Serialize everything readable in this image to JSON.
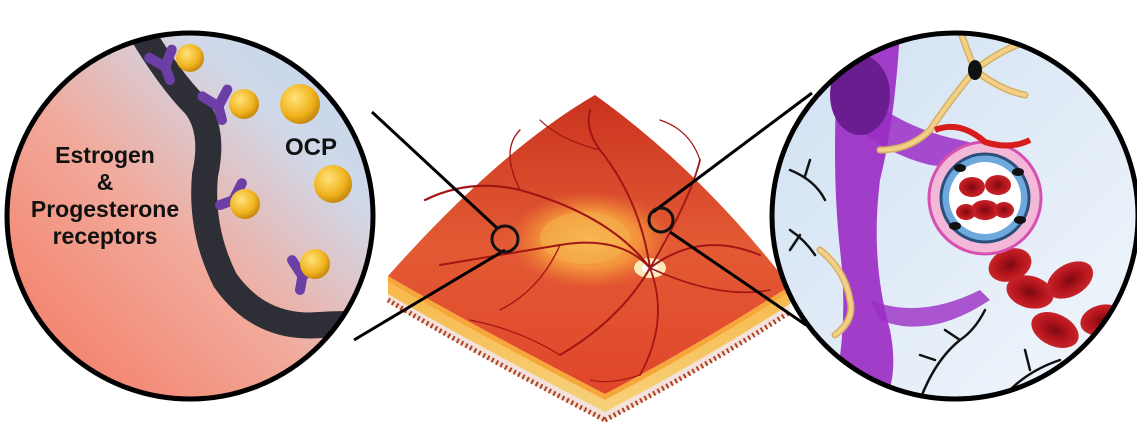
{
  "labels": {
    "receptors": {
      "line1": "Estrogen",
      "line2": "&",
      "line3": "Progesterone",
      "line4": "receptors"
    },
    "ocp": "OCP"
  },
  "colors": {
    "retina": "#e0462a",
    "vessel": "#a01515",
    "macula": "#f4a23a",
    "receptor": "#6b3fa6",
    "hormone": "#f0b21c",
    "fiber": "#2e2e36",
    "astrocyte": "#f2d08a",
    "pericyte": "#9b2ec4",
    "red_cell": "#b3141c"
  },
  "icons": {
    "left_zoom": "hormone-receptor-binding-icon",
    "center": "retina-tissue-block-icon",
    "right_zoom": "retinal-capillary-cross-section-icon"
  }
}
